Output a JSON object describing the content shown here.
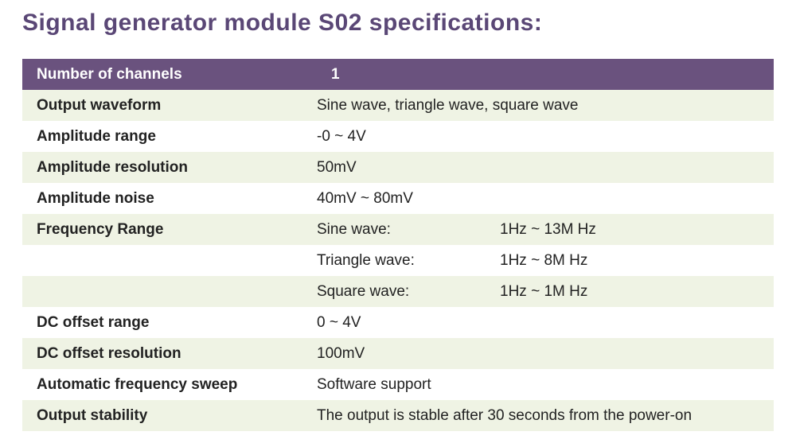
{
  "title": "Signal generator module S02 specifications:",
  "title_color": "#5a4776",
  "header_bg": "#6a527e",
  "row_color_even": "#eff3e4",
  "row_color_odd": "#ffffff",
  "header": {
    "label": "Number of channels",
    "value": "1"
  },
  "rows": [
    {
      "label": "Output waveform",
      "value": "Sine wave, triangle wave, square wave"
    },
    {
      "label": "Amplitude  range",
      "value": "-0 ~ 4V"
    },
    {
      "label": "Amplitude  resolution",
      "value": "50mV"
    },
    {
      "label": "Amplitude  noise",
      "value": "40mV ~ 80mV"
    },
    {
      "label": "Frequency Range",
      "sub1": "Sine wave:",
      "sub2": "1Hz ~ 13M Hz"
    },
    {
      "label": "",
      "sub1": "Triangle wave:",
      "sub2": "1Hz ~ 8M Hz"
    },
    {
      "label": "",
      "sub1": "Square wave:",
      "sub2": "1Hz ~ 1M Hz"
    },
    {
      "label": "DC offset range",
      "value": "0 ~ 4V"
    },
    {
      "label": "DC offset resolution",
      "value": "100mV"
    },
    {
      "label": "Automatic  frequency sweep",
      "value": "Software support"
    },
    {
      "label": "Output stability",
      "value": "The output is stable after 30 seconds from the power-on"
    }
  ]
}
